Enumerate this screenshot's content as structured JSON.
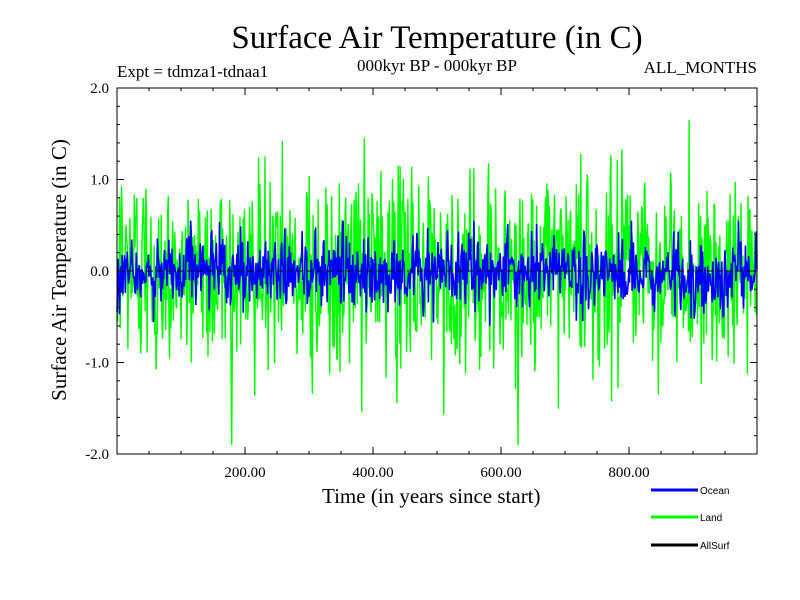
{
  "chart_data": {
    "type": "line",
    "title": "Surface Air Temperature (in C)",
    "subtitle_left": "Expt = tdmza1-tdnaa1",
    "subtitle_center": "000kyr BP - 000kyr BP",
    "subtitle_right": "ALL_MONTHS",
    "xlabel": "Time (in years since start)",
    "ylabel": "Surface Air Temperature (in C)",
    "xlim": [
      0,
      1000
    ],
    "ylim": [
      -2.0,
      2.0
    ],
    "x_ticks": [
      200,
      400,
      600,
      800
    ],
    "x_tick_labels": [
      "200.00",
      "400.00",
      "600.00",
      "800.00"
    ],
    "y_ticks": [
      -2.0,
      -1.0,
      0.0,
      1.0,
      2.0
    ],
    "y_tick_labels": [
      "-2.0",
      "-1.0",
      "0.0",
      "1.0",
      "2.0"
    ],
    "reference_line": 0.0,
    "series": [
      {
        "name": "Land",
        "color": "#00ff00",
        "approx_range": [
          -1.9,
          1.65
        ],
        "typical_amplitude": 0.55,
        "n_points": 1000
      },
      {
        "name": "Ocean",
        "color": "#0000ff",
        "approx_range": [
          -0.6,
          0.55
        ],
        "typical_amplitude": 0.2,
        "n_points": 1000
      },
      {
        "name": "AllSurf",
        "color": "#000000",
        "approx_range": [
          0,
          0
        ],
        "typical_amplitude": 0,
        "n_points": 0
      }
    ],
    "legend": [
      {
        "label": "Ocean",
        "color": "#0000ff"
      },
      {
        "label": "Land",
        "color": "#00ff00"
      },
      {
        "label": "AllSurf",
        "color": "#000000"
      }
    ]
  }
}
